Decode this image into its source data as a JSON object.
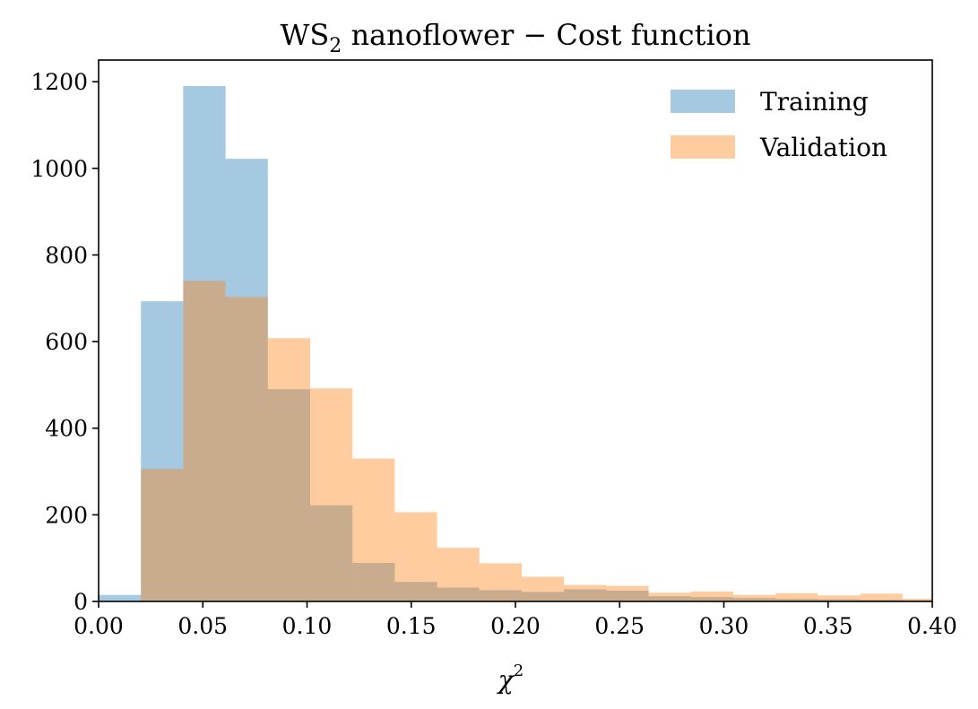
{
  "chart_data": {
    "type": "histogram",
    "title": {
      "prefix": "WS",
      "subscript": "2",
      "suffix": " nanoflower − Cost function"
    },
    "xlabel": {
      "base": "χ",
      "superscript": "2"
    },
    "ylabel": "",
    "xlim": [
      0.0,
      0.4
    ],
    "ylim": [
      0,
      1250
    ],
    "xticks": [
      0.0,
      0.05,
      0.1,
      0.15,
      0.2,
      0.25,
      0.3,
      0.35,
      0.4
    ],
    "xtick_labels": [
      "0.00",
      "0.05",
      "0.10",
      "0.15",
      "0.20",
      "0.25",
      "0.30",
      "0.35",
      "0.40"
    ],
    "yticks": [
      0,
      200,
      400,
      600,
      800,
      1000,
      1200
    ],
    "ytick_labels": [
      "0",
      "200",
      "400",
      "600",
      "800",
      "1000",
      "1200"
    ],
    "grid": false,
    "legend_position": "top-right",
    "series": [
      {
        "name": "Training",
        "color": "#1f77b4",
        "opacity": 0.4,
        "bin_edges": [
          0.0,
          0.0203,
          0.0406,
          0.0609,
          0.0812,
          0.1015,
          0.1218,
          0.1421,
          0.1624,
          0.1827,
          0.203,
          0.2233,
          0.2436,
          0.2639,
          0.2842,
          0.3045,
          0.3248,
          0.3451,
          0.3654,
          0.3857,
          0.406
        ],
        "counts": [
          15,
          693,
          1190,
          1022,
          490,
          222,
          89,
          45,
          32,
          26,
          22,
          28,
          25,
          12,
          10,
          8,
          6,
          5,
          4,
          3
        ]
      },
      {
        "name": "Validation",
        "color": "#ff7f0e",
        "opacity": 0.4,
        "bin_edges": [
          0.0,
          0.0203,
          0.0406,
          0.0609,
          0.0812,
          0.1015,
          0.1218,
          0.1421,
          0.1624,
          0.1827,
          0.203,
          0.2233,
          0.2436,
          0.2639,
          0.2842,
          0.3045,
          0.3248,
          0.3451,
          0.3654,
          0.3857,
          0.406
        ],
        "counts": [
          0,
          306,
          740,
          703,
          608,
          492,
          330,
          206,
          124,
          88,
          57,
          38,
          36,
          20,
          23,
          15,
          19,
          14,
          18,
          6
        ]
      }
    ]
  }
}
